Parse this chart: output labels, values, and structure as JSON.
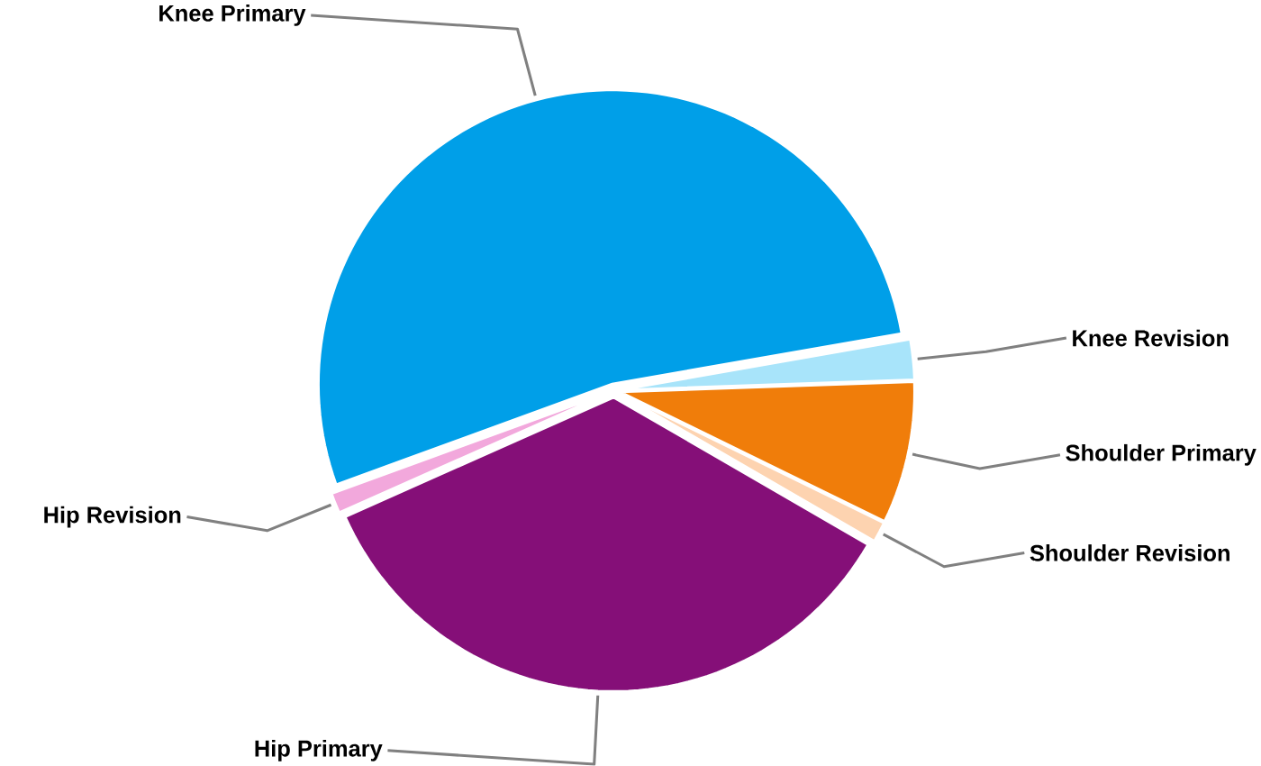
{
  "chart_data": {
    "type": "pie",
    "categories": [
      "Knee Primary",
      "Knee Revision",
      "Shoulder Primary",
      "Shoulder Revision",
      "Hip Primary",
      "Hip Revision"
    ],
    "values": [
      52.8,
      2.2,
      7.8,
      1.1,
      35.0,
      1.1
    ],
    "colors": [
      "#009fe8",
      "#a8e4fa",
      "#f07d0a",
      "#fdd3b0",
      "#850f78",
      "#f2a8dc"
    ]
  }
}
